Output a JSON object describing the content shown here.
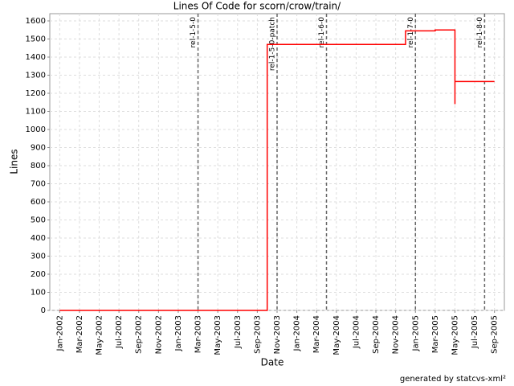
{
  "chart_data": {
    "type": "line",
    "title": "Lines Of Code for scorn/crow/train/",
    "x_label": "Date",
    "y_label": "Lines",
    "x": [
      "Jan-2002",
      "Oct-2003",
      "Oct-2003",
      "Dec-2004",
      "Dec-2004",
      "Mar-2005",
      "Mar-2005",
      "May-2005",
      "May-2005",
      "May-2005",
      "Sep-2005"
    ],
    "series": [
      {
        "name": "Lines",
        "color": "#ff0000",
        "values": [
          0,
          0,
          1470,
          1470,
          1545,
          1545,
          1550,
          1550,
          1140,
          1265,
          1265
        ]
      }
    ],
    "xlim": [
      "Dec-2001",
      "Oct-2005"
    ],
    "xticks": [
      "Jan-2002",
      "Mar-2002",
      "May-2002",
      "Jul-2002",
      "Sep-2002",
      "Nov-2002",
      "Jan-2003",
      "Mar-2003",
      "May-2003",
      "Jul-2003",
      "Sep-2003",
      "Nov-2003",
      "Jan-2004",
      "Mar-2004",
      "May-2004",
      "Jul-2004",
      "Sep-2004",
      "Nov-2004",
      "Jan-2005",
      "Mar-2005",
      "May-2005",
      "Jul-2005",
      "Sep-2005"
    ],
    "ylim": [
      0,
      1640
    ],
    "yticks": [
      0,
      100,
      200,
      300,
      400,
      500,
      600,
      700,
      800,
      900,
      1000,
      1100,
      1200,
      1300,
      1400,
      1500,
      1600
    ],
    "grid": true,
    "markers": [
      {
        "x": "Mar-2003",
        "label": "rel-1-5-0"
      },
      {
        "x": "Nov-2003",
        "label": "rel-1-5-0-patch"
      },
      {
        "x": "Apr-2004",
        "label": "rel-1-6-0"
      },
      {
        "x": "Jan-2005",
        "label": "rel-1-7-0"
      },
      {
        "x": "Aug-2005",
        "label": "rel-1-8-0"
      }
    ],
    "footer": "generated by statcvs-xml²"
  }
}
